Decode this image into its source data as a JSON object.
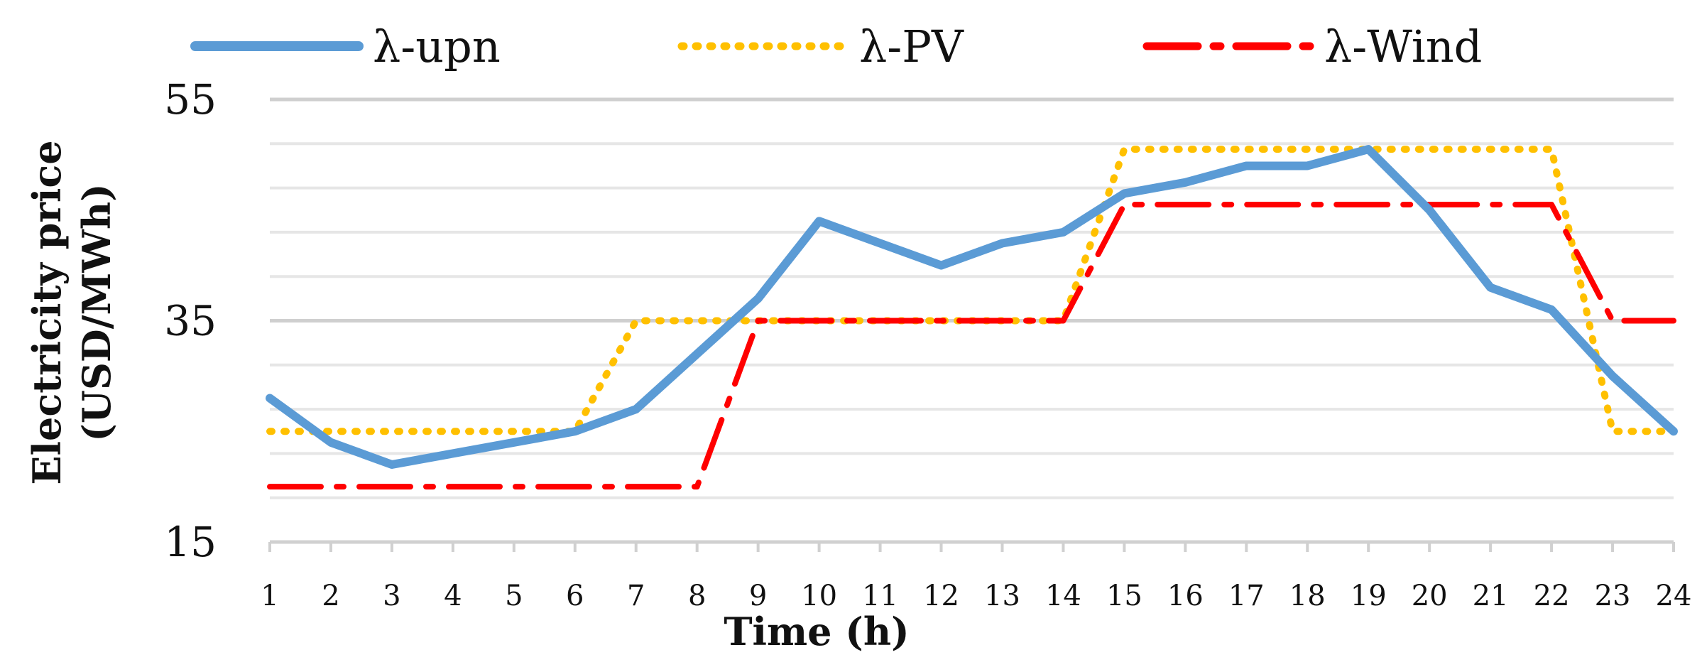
{
  "chart_data": {
    "type": "line",
    "xlabel": "Time (h)",
    "ylabel_line1": "Electricity price",
    "ylabel_line2": "(USD/MWh)",
    "ylim": [
      15,
      55
    ],
    "y_ticks": [
      15,
      35,
      55
    ],
    "y_minor_step": 4,
    "grid": true,
    "legend_position": "top",
    "categories": [
      1,
      2,
      3,
      4,
      5,
      6,
      7,
      8,
      9,
      10,
      11,
      12,
      13,
      14,
      15,
      16,
      17,
      18,
      19,
      20,
      21,
      22,
      23,
      24
    ],
    "series": [
      {
        "name": "λ-upn",
        "color": "#5B9BD5",
        "style": "solid",
        "values": [
          28,
          24,
          22,
          23,
          24,
          25,
          27,
          32,
          37,
          44,
          42,
          40,
          42,
          43,
          46.5,
          47.5,
          49,
          49,
          50.5,
          45,
          38,
          36,
          30,
          25
        ]
      },
      {
        "name": "λ-PV",
        "color": "#FFC000",
        "style": "dotted",
        "values": [
          25,
          25,
          25,
          25,
          25,
          25,
          35,
          35,
          35,
          35,
          35,
          35,
          35,
          35,
          50.5,
          50.5,
          50.5,
          50.5,
          50.5,
          50.5,
          50.5,
          50.5,
          25,
          25
        ]
      },
      {
        "name": "λ-Wind",
        "color": "#FF0000",
        "style": "dashdot",
        "values": [
          20,
          20,
          20,
          20,
          20,
          20,
          20,
          20,
          35,
          35,
          35,
          35,
          35,
          35,
          45.5,
          45.5,
          45.5,
          45.5,
          45.5,
          45.5,
          45.5,
          45.5,
          35,
          35
        ]
      }
    ]
  }
}
